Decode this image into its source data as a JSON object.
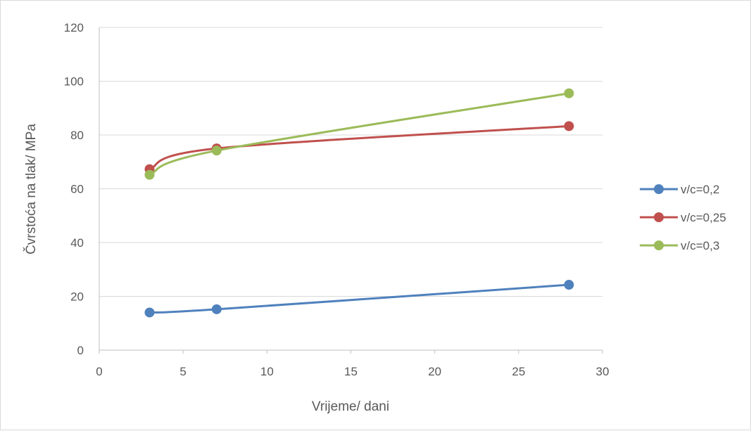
{
  "chart_data": {
    "type": "scatter",
    "xlabel": "Vrijeme/ dani",
    "ylabel": "Čvrstoća na tlak/  MPa",
    "xlim": [
      0,
      30
    ],
    "ylim": [
      0,
      120
    ],
    "xticks": [
      0,
      5,
      10,
      15,
      20,
      25,
      30
    ],
    "yticks": [
      0,
      20,
      40,
      60,
      80,
      100,
      120
    ],
    "grid": "horizontal",
    "legend_position": "right",
    "smooth_lines": true,
    "series": [
      {
        "name": "v/c=0,2",
        "color": "#4f81bd",
        "x": [
          3,
          7,
          28
        ],
        "y": [
          14.0,
          15.2,
          24.3
        ]
      },
      {
        "name": "v/c=0,25",
        "color": "#c0504d",
        "x": [
          3,
          7,
          28
        ],
        "y": [
          67.3,
          75.0,
          83.3
        ]
      },
      {
        "name": "v/c=0,3",
        "color": "#9bbb59",
        "x": [
          3,
          7,
          28
        ],
        "y": [
          65.2,
          74.2,
          95.5
        ]
      }
    ]
  }
}
